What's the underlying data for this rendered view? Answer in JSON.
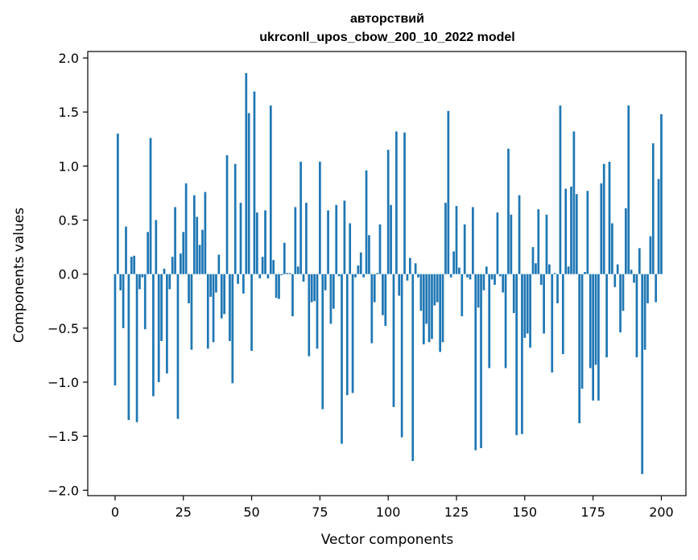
{
  "chart_data": {
    "type": "bar",
    "title": "авторствий",
    "subtitle": "ukrconll_upos_cbow_200_10_2022 model",
    "xlabel": "Vector components",
    "ylabel": "Components values",
    "xlim": [
      -10,
      209
    ],
    "ylim": [
      -2.05,
      2.06
    ],
    "xticks": [
      0,
      25,
      50,
      75,
      100,
      125,
      150,
      175,
      200
    ],
    "yticks": [
      -2.0,
      -1.5,
      -1.0,
      -0.5,
      0.0,
      0.5,
      1.0,
      1.5,
      2.0
    ],
    "ytick_labels": [
      "−2.0",
      "−1.5",
      "−1.0",
      "−0.5",
      "0.0",
      "0.5",
      "1.0",
      "1.5",
      "2.0"
    ],
    "color": "#1f77b4",
    "values": [
      -1.03,
      1.3,
      -0.15,
      -0.5,
      0.44,
      -1.35,
      0.16,
      0.17,
      -1.37,
      -0.14,
      -0.03,
      -0.51,
      0.39,
      1.26,
      -1.13,
      0.5,
      -1.0,
      -0.62,
      0.05,
      -0.92,
      -0.14,
      0.16,
      0.62,
      -1.34,
      0.19,
      0.39,
      0.84,
      -0.27,
      -0.7,
      0.73,
      0.53,
      0.27,
      0.41,
      0.76,
      -0.69,
      -0.21,
      -0.63,
      -0.17,
      0.18,
      -0.41,
      -0.37,
      1.1,
      -0.62,
      -1.01,
      1.02,
      -0.09,
      0.66,
      -0.18,
      1.86,
      1.49,
      -0.71,
      1.69,
      0.57,
      -0.04,
      0.16,
      0.59,
      -0.04,
      1.56,
      0.13,
      -0.22,
      -0.23,
      -0.01,
      0.29,
      0.01,
      0.01,
      -0.39,
      0.62,
      0.07,
      1.04,
      -0.07,
      0.66,
      -0.76,
      -0.26,
      -0.25,
      -0.69,
      1.04,
      -1.25,
      -0.15,
      0.59,
      -0.46,
      -0.32,
      0.64,
      -0.02,
      -1.57,
      0.68,
      -1.12,
      0.47,
      -1.1,
      -0.03,
      0.08,
      0.2,
      -0.03,
      0.96,
      0.36,
      -0.64,
      -0.26,
      0.01,
      0.46,
      -0.38,
      -0.48,
      1.15,
      0.64,
      -1.23,
      1.32,
      -0.2,
      -1.51,
      1.31,
      -0.06,
      0.15,
      -1.73,
      0.1,
      -0.03,
      -0.34,
      -0.65,
      -0.46,
      -0.63,
      -0.6,
      -0.29,
      -0.26,
      -0.72,
      -0.63,
      0.66,
      1.51,
      -0.03,
      0.21,
      0.63,
      0.06,
      -0.39,
      0.46,
      -0.03,
      -0.05,
      0.62,
      -1.63,
      -0.31,
      -1.61,
      -0.15,
      0.07,
      -0.87,
      -0.05,
      -0.1,
      0.57,
      -0.02,
      -0.17,
      -0.87,
      1.16,
      0.55,
      -0.36,
      -1.49,
      0.73,
      -1.48,
      -0.59,
      -0.55,
      -0.68,
      0.25,
      0.1,
      0.6,
      -0.1,
      -0.55,
      0.55,
      0.09,
      -0.91,
      0.01,
      -0.27,
      1.56,
      -0.74,
      0.79,
      0.07,
      0.81,
      1.32,
      0.74,
      -1.38,
      -1.06,
      0.02,
      0.77,
      -0.87,
      -1.17,
      -0.84,
      -1.17,
      0.84,
      1.02,
      -0.77,
      1.04,
      0.47,
      -0.12,
      0.09,
      -0.54,
      -0.34,
      0.61,
      1.56,
      0.04,
      -0.08,
      -0.77,
      0.24,
      -1.85,
      -0.7,
      -0.27,
      0.35,
      1.21,
      -0.26,
      0.88,
      1.48
    ]
  }
}
